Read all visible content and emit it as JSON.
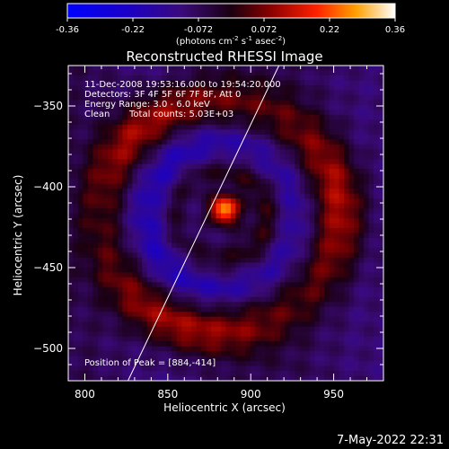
{
  "footer_timestamp": "7-May-2022 22:31",
  "chart_data": {
    "type": "heatmap",
    "title": "Reconstructed RHESSI Image",
    "xlabel": "Heliocentric X (arcsec)",
    "ylabel": "Heliocentric Y (arcsec)",
    "xlim": [
      790,
      980
    ],
    "ylim": [
      -520,
      -325
    ],
    "xticks": [
      800,
      850,
      900,
      950
    ],
    "yticks": [
      -350,
      -400,
      -450,
      -500
    ],
    "colorbar": {
      "min": -0.36,
      "max": 0.36,
      "ticks": [
        "-0.36",
        "-0.22",
        "-0.072",
        "0.072",
        "0.22",
        "0.36"
      ],
      "units_main": "(photons cm",
      "units_exp1": "-2",
      "units_mid": " s",
      "units_exp2": "-1",
      "units_mid2": " asec",
      "units_exp3": "-2",
      "units_end": ")"
    },
    "annotations": {
      "time": "11-Dec-2008 19:53:16.000 to 19:54:20.000",
      "detectors": "Detectors: 3F 4F 5F 6F 7F 8F, Att 0",
      "energy": "Energy Range: 3.0 - 6.0 keV",
      "clean_label": "Clean",
      "total_counts": "Total counts: 5.03E+03",
      "peak": "Position of Peak = [884,-414]"
    },
    "peak": {
      "x": 884,
      "y": -414,
      "value": 0.36
    },
    "ring": {
      "center_x": 882,
      "center_y": -418,
      "radius_arcsec": 72,
      "value": 0.2
    },
    "limb_line": [
      [
        826,
        -520
      ],
      [
        917,
        -325
      ]
    ],
    "colors": {
      "limb": "#ffffff",
      "background": "#000000"
    }
  }
}
